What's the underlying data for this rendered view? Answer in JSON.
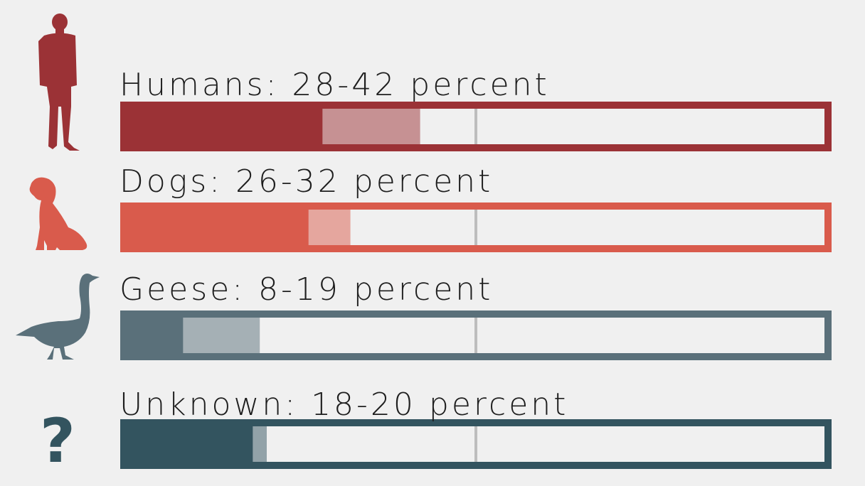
{
  "chart_data": {
    "type": "bar",
    "categories": [
      "Humans",
      "Dogs",
      "Geese",
      "Unknown"
    ],
    "ranges": [
      {
        "low": 28,
        "high": 42
      },
      {
        "low": 26,
        "high": 32
      },
      {
        "low": 8,
        "high": 19
      },
      {
        "low": 18,
        "high": 20
      }
    ],
    "labels": [
      "Humans: 28-42 percent",
      "Dogs: 26-32 percent",
      "Geese: 8-19 percent",
      "Unknown: 18-20 percent"
    ],
    "unknown_symbol": "?",
    "xlim": [
      0,
      100
    ],
    "reference_line": 50,
    "colors": [
      "#9b3236",
      "#d95b4c",
      "#5a707a",
      "#33545f"
    ],
    "icons": [
      "person-icon",
      "dog-icon",
      "goose-icon",
      "question-mark-icon"
    ]
  }
}
